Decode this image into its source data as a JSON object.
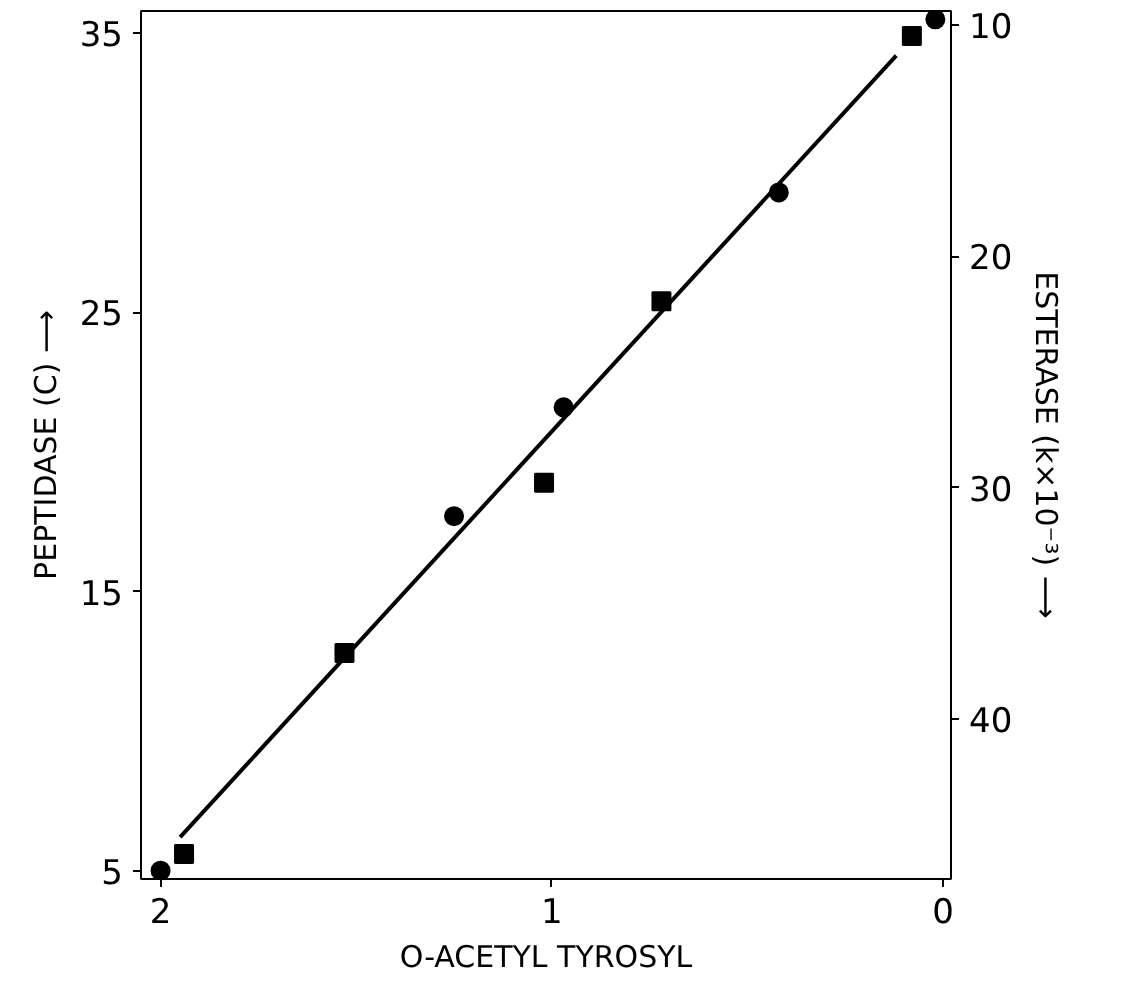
{
  "chart_data": {
    "type": "scatter",
    "xlabel": "O-ACETYL TYROSYL",
    "ylabel": "PEPTIDASE (C) ⟶",
    "y2label": "ESTERASE (k×10⁻³) ⟶",
    "xlim": [
      2.05,
      -0.02
    ],
    "xticks": [
      2,
      1,
      0
    ],
    "ylim": [
      4.7,
      35.8
    ],
    "yticks": [
      5,
      15,
      25,
      35
    ],
    "y2lim": [
      46.9,
      9.4
    ],
    "y2ticks": [
      10,
      20,
      30,
      40
    ],
    "grid": false,
    "series": [
      {
        "marker": "circle",
        "color": "#000000",
        "x": [
          2.0,
          1.25,
          0.97,
          0.42,
          0.02
        ],
        "values": [
          5.0,
          17.7,
          21.6,
          29.3,
          35.5
        ]
      },
      {
        "marker": "square",
        "color": "#000000",
        "x": [
          1.94,
          1.53,
          1.02,
          0.72,
          0.08
        ],
        "values": [
          5.6,
          12.8,
          18.9,
          25.4,
          34.9
        ]
      },
      {
        "type": "line",
        "marker": "none",
        "line_style": "solid",
        "color": "#000000",
        "x": [
          1.95,
          0.12
        ],
        "values": [
          6.2,
          34.2
        ]
      }
    ]
  }
}
